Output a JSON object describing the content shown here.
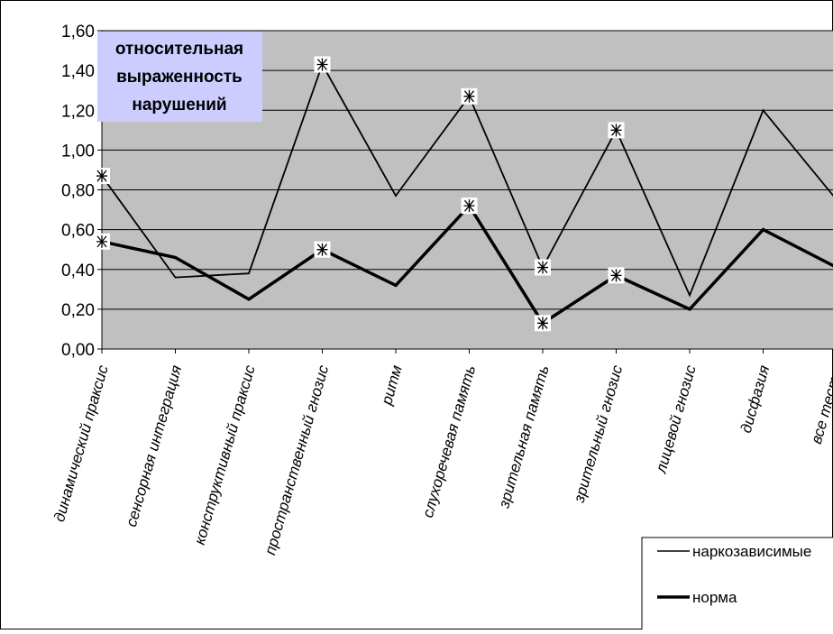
{
  "chart_data": {
    "type": "line",
    "title": "относительная выраженность нарушений",
    "title_lines": [
      "относительная",
      "выраженность",
      "нарушений"
    ],
    "xlabel": "",
    "ylabel": "",
    "ylim": [
      0,
      1.6
    ],
    "y_ticks": [
      "0,00",
      "0,20",
      "0,40",
      "0,60",
      "0,80",
      "1,00",
      "1,20",
      "1,40",
      "1,60"
    ],
    "grid": true,
    "legend_position": "bottom-right",
    "categories": [
      "динамический праксис",
      "сенсорная интеграция",
      "конструктивный праксис",
      "пространственный гнозис",
      "ритм",
      "слухоречевая память",
      "зрительная память",
      "зрительный гнозис",
      "лицевой гнозис",
      "дисфазия",
      "все тесты"
    ],
    "series": [
      {
        "name": "наркозависимые",
        "values": [
          0.87,
          0.36,
          0.38,
          1.43,
          0.77,
          1.27,
          0.41,
          1.1,
          0.27,
          1.2,
          0.75
        ],
        "marked": [
          true,
          false,
          false,
          true,
          false,
          true,
          true,
          true,
          false,
          false,
          false
        ],
        "style": "thin"
      },
      {
        "name": "норма",
        "values": [
          0.54,
          0.46,
          0.25,
          0.5,
          0.32,
          0.72,
          0.13,
          0.37,
          0.2,
          0.6,
          0.41
        ],
        "marked": [
          true,
          false,
          false,
          true,
          false,
          true,
          true,
          true,
          false,
          false,
          false
        ],
        "style": "thick"
      }
    ],
    "colors": {
      "plot_background": "#c0c0c0",
      "gridline": "#000000",
      "line": "#000000",
      "title_box": "#ccccff",
      "marker_fill": "#ffffff"
    },
    "marker_symbol": "asterisk"
  }
}
